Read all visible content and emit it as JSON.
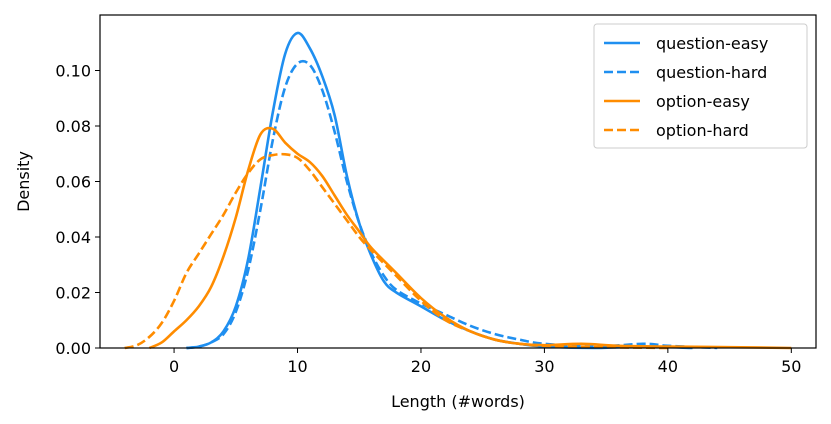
{
  "chart_data": {
    "type": "line",
    "title": "",
    "xlabel": "Length (#words)",
    "ylabel": "Density",
    "xlim": [
      -6,
      52
    ],
    "ylim": [
      0,
      0.12
    ],
    "xticks": [
      0,
      10,
      20,
      30,
      40,
      50
    ],
    "yticks": [
      0.0,
      0.02,
      0.04,
      0.06,
      0.08,
      0.1
    ],
    "ytick_labels": [
      "0.00",
      "0.02",
      "0.04",
      "0.06",
      "0.08",
      "0.10"
    ],
    "grid": false,
    "legend_position": "top-right",
    "series": [
      {
        "name": "question-easy",
        "color": "#1f8ff0",
        "dash": "solid",
        "x": [
          1,
          2,
          3,
          4,
          5,
          6,
          7,
          8,
          9,
          10,
          11,
          12,
          13,
          14,
          15,
          16,
          17,
          18,
          20,
          22,
          24,
          26,
          28,
          30,
          34,
          38,
          42
        ],
        "y": [
          0.0,
          0.0005,
          0.002,
          0.006,
          0.015,
          0.032,
          0.058,
          0.085,
          0.106,
          0.1135,
          0.108,
          0.098,
          0.084,
          0.062,
          0.045,
          0.033,
          0.024,
          0.02,
          0.015,
          0.01,
          0.006,
          0.003,
          0.0015,
          0.0005,
          0.0,
          0.0005,
          0.0
        ]
      },
      {
        "name": "question-hard",
        "color": "#1f8ff0",
        "dash": "dashed",
        "x": [
          1,
          2,
          3,
          4,
          5,
          6,
          7,
          8,
          9,
          10,
          11,
          12,
          13,
          14,
          15,
          16,
          17,
          18,
          20,
          22,
          24,
          26,
          28,
          30,
          34,
          38,
          40,
          44
        ],
        "y": [
          0.0,
          0.0005,
          0.002,
          0.005,
          0.013,
          0.028,
          0.05,
          0.075,
          0.094,
          0.1025,
          0.102,
          0.093,
          0.078,
          0.06,
          0.045,
          0.034,
          0.026,
          0.021,
          0.016,
          0.012,
          0.008,
          0.005,
          0.003,
          0.0015,
          0.0005,
          0.0015,
          0.0008,
          0.0
        ]
      },
      {
        "name": "option-easy",
        "color": "#ff8c00",
        "dash": "solid",
        "x": [
          -2,
          -1,
          0,
          1,
          2,
          3,
          4,
          5,
          6,
          7,
          8,
          9,
          10,
          11,
          12,
          13,
          14,
          15,
          16,
          18,
          20,
          22,
          24,
          26,
          28,
          30,
          33,
          36,
          40,
          45,
          50
        ],
        "y": [
          0.0,
          0.002,
          0.006,
          0.01,
          0.015,
          0.022,
          0.033,
          0.047,
          0.064,
          0.077,
          0.079,
          0.074,
          0.07,
          0.067,
          0.062,
          0.055,
          0.048,
          0.042,
          0.036,
          0.027,
          0.018,
          0.011,
          0.006,
          0.003,
          0.0015,
          0.001,
          0.0015,
          0.0008,
          0.0005,
          0.0003,
          0.0
        ]
      },
      {
        "name": "option-hard",
        "color": "#ff8c00",
        "dash": "dashed",
        "x": [
          -4,
          -3,
          -2,
          -1,
          0,
          1,
          2,
          3,
          4,
          5,
          6,
          7,
          8,
          9,
          10,
          11,
          12,
          13,
          14,
          15,
          16,
          18,
          20,
          22,
          24,
          26,
          28,
          30,
          35,
          40
        ],
        "y": [
          0.0,
          0.001,
          0.004,
          0.009,
          0.017,
          0.027,
          0.034,
          0.041,
          0.048,
          0.056,
          0.063,
          0.068,
          0.0695,
          0.0698,
          0.0685,
          0.064,
          0.058,
          0.052,
          0.046,
          0.04,
          0.035,
          0.026,
          0.017,
          0.01,
          0.006,
          0.003,
          0.0015,
          0.0008,
          0.0003,
          0.0
        ]
      }
    ]
  }
}
